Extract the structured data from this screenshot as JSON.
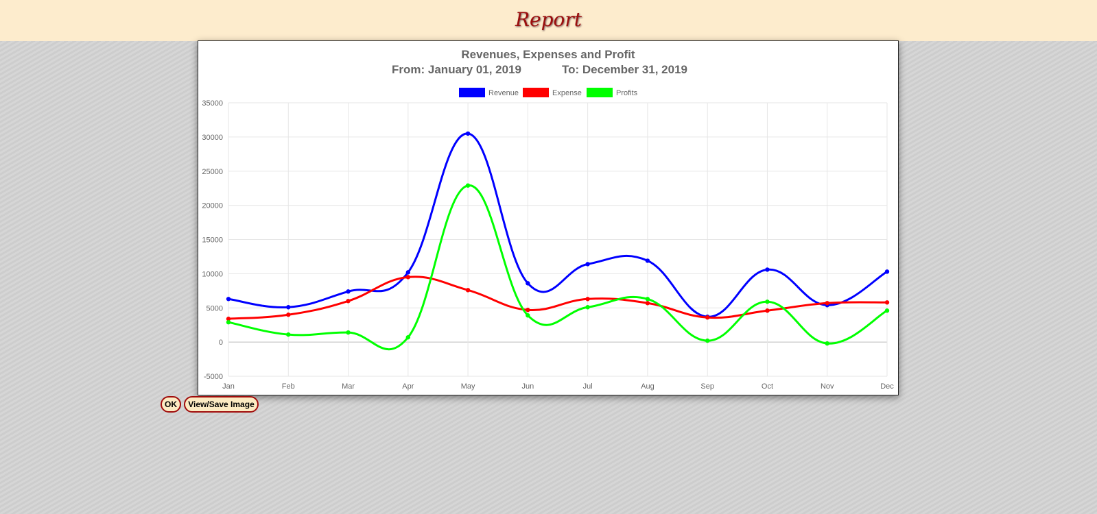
{
  "header": {
    "title": "Report"
  },
  "buttons": {
    "ok_label": "OK",
    "save_label": "View/Save Image"
  },
  "colors": {
    "revenue": "#0000ff",
    "expense": "#ff0000",
    "profits": "#00ff00",
    "banner_text": "#9b0d0d"
  },
  "chart_data": {
    "type": "line",
    "title": "Revenues, Expenses and Profit",
    "subtitle_from": "From: January 01, 2019",
    "subtitle_to": "To: December 31, 2019",
    "categories": [
      "Jan",
      "Feb",
      "Mar",
      "Apr",
      "May",
      "Jun",
      "Jul",
      "Aug",
      "Sep",
      "Oct",
      "Nov",
      "Dec"
    ],
    "ylim": [
      -5000,
      35000
    ],
    "yticks": [
      35000,
      30000,
      25000,
      20000,
      15000,
      10000,
      5000,
      0,
      -5000
    ],
    "grid": true,
    "legend_position": "top",
    "series": [
      {
        "name": "Revenue",
        "color": "#0000ff",
        "values": [
          6300,
          5100,
          7400,
          10200,
          30500,
          8600,
          11400,
          11900,
          3700,
          10600,
          5400,
          10300
        ]
      },
      {
        "name": "Expense",
        "color": "#ff0000",
        "values": [
          3400,
          4000,
          6000,
          9500,
          7600,
          4700,
          6300,
          5700,
          3600,
          4600,
          5700,
          5800
        ]
      },
      {
        "name": "Profits",
        "color": "#00ff00",
        "values": [
          2900,
          1100,
          1400,
          700,
          22900,
          3900,
          5100,
          6300,
          200,
          5900,
          -200,
          4600
        ]
      }
    ]
  }
}
